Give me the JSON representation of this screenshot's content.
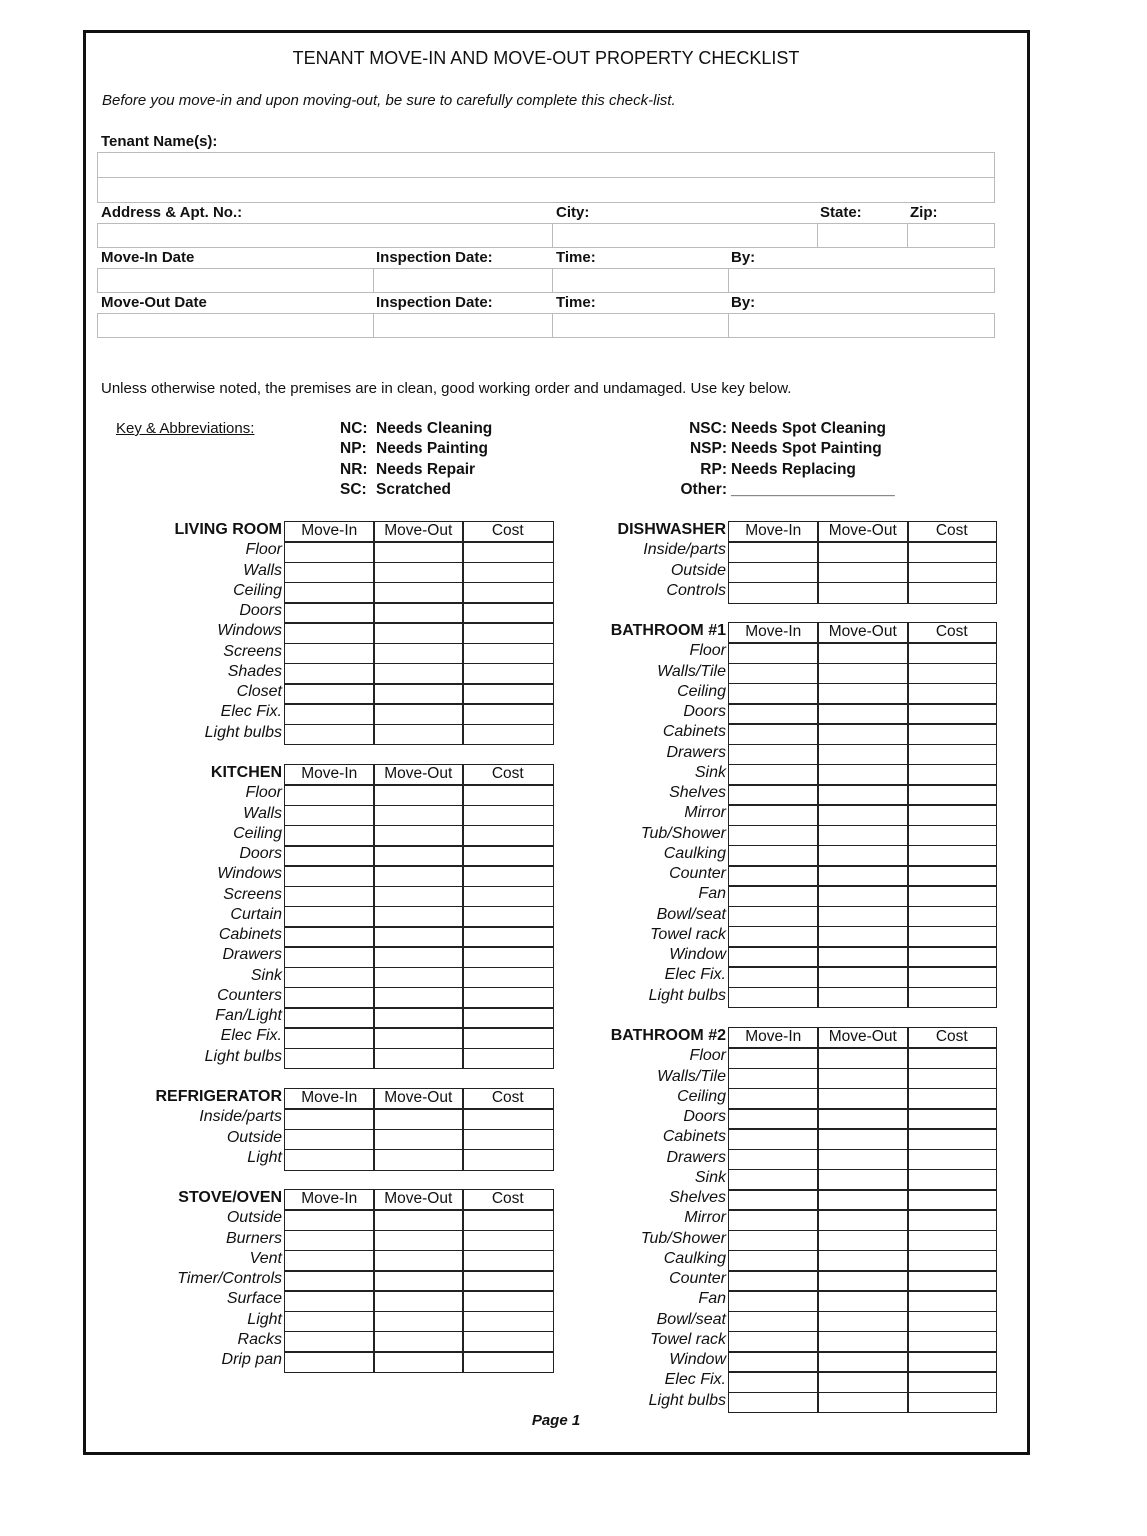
{
  "title": "TENANT MOVE-IN AND MOVE-OUT PROPERTY CHECKLIST",
  "subtitle": "Before you move-in and upon moving-out, be sure to carefully complete this check-list.",
  "form": {
    "tenant_names": "Tenant Name(s):",
    "address": "Address & Apt. No.:",
    "city": "City:",
    "state": "State:",
    "zip": "Zip:",
    "move_in_date": "Move-In Date",
    "move_out_date": "Move-Out Date",
    "inspection_date": "Inspection Date:",
    "time": "Time:",
    "by": "By:"
  },
  "note": "Unless otherwise noted, the premises are in clean, good working order and undamaged.  Use key below.",
  "key": {
    "heading": "Key & Abbreviations:",
    "left": [
      {
        "code": "NC:",
        "meaning": "Needs Cleaning"
      },
      {
        "code": "NP:",
        "meaning": "Needs Painting"
      },
      {
        "code": "NR:",
        "meaning": "Needs Repair"
      },
      {
        "code": "SC:",
        "meaning": "Scratched"
      }
    ],
    "right": [
      {
        "code": "NSC:",
        "meaning": "Needs Spot Cleaning"
      },
      {
        "code": "NSP:",
        "meaning": "Needs Spot Painting"
      },
      {
        "code": "RP:",
        "meaning": "Needs Replacing"
      },
      {
        "code": "Other:",
        "meaning": "___________________"
      }
    ]
  },
  "columns": [
    "Move-In",
    "Move-Out",
    "Cost"
  ],
  "sections": [
    {
      "name": "LIVING ROOM",
      "items": [
        "Floor",
        "Walls",
        "Ceiling",
        "Doors",
        "Windows",
        "Screens",
        "Shades",
        "Closet",
        "Elec Fix.",
        "Light bulbs"
      ]
    },
    {
      "name": "KITCHEN",
      "items": [
        "Floor",
        "Walls",
        "Ceiling",
        "Doors",
        "Windows",
        "Screens",
        "Curtain",
        "Cabinets",
        "Drawers",
        "Sink",
        "Counters",
        "Fan/Light",
        "Elec Fix.",
        "Light bulbs"
      ]
    },
    {
      "name": "REFRIGERATOR",
      "items": [
        "Inside/parts",
        "Outside",
        "Light"
      ]
    },
    {
      "name": "STOVE/OVEN",
      "items": [
        "Outside",
        "Burners",
        "Vent",
        "Timer/Controls",
        "Surface",
        "Light",
        "Racks",
        "Drip pan"
      ]
    },
    {
      "name": "DISHWASHER",
      "items": [
        "Inside/parts",
        "Outside",
        "Controls"
      ]
    },
    {
      "name": "BATHROOM #1",
      "items": [
        "Floor",
        "Walls/Tile",
        "Ceiling",
        "Doors",
        "Cabinets",
        "Drawers",
        "Sink",
        "Shelves",
        "Mirror",
        "Tub/Shower",
        "Caulking",
        "Counter",
        "Fan",
        "Bowl/seat",
        "Towel rack",
        "Window",
        "Elec Fix.",
        "Light bulbs"
      ]
    },
    {
      "name": "BATHROOM #2",
      "items": [
        "Floor",
        "Walls/Tile",
        "Ceiling",
        "Doors",
        "Cabinets",
        "Drawers",
        "Sink",
        "Shelves",
        "Mirror",
        "Tub/Shower",
        "Caulking",
        "Counter",
        "Fan",
        "Bowl/seat",
        "Towel rack",
        "Window",
        "Elec Fix.",
        "Light bulbs"
      ]
    }
  ],
  "page_label": "Page 1"
}
